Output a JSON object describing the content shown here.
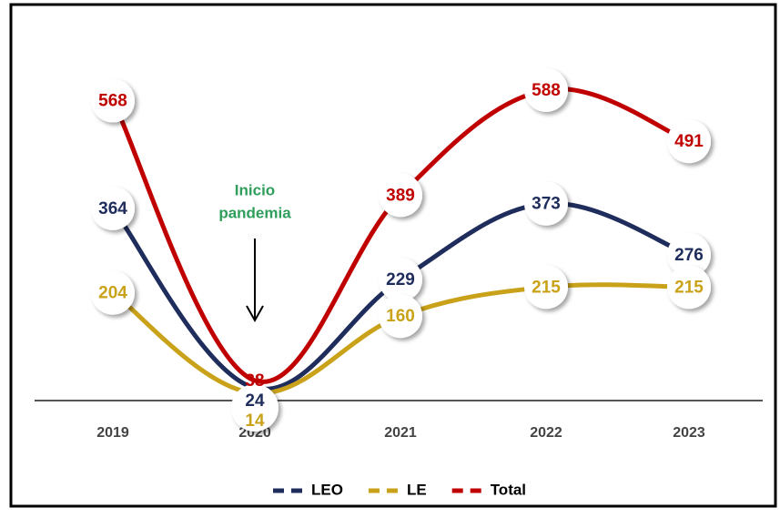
{
  "chart_data": {
    "type": "line",
    "categories": [
      "2019",
      "2020",
      "2021",
      "2022",
      "2023"
    ],
    "series": [
      {
        "name": "LEO",
        "color": "#1f2d5c",
        "values": [
          364,
          24,
          229,
          373,
          276
        ]
      },
      {
        "name": "LE",
        "color": "#c9a21a",
        "values": [
          204,
          14,
          160,
          215,
          215
        ]
      },
      {
        "name": "Total",
        "color": "#c00000",
        "values": [
          568,
          38,
          389,
          588,
          491
        ]
      }
    ],
    "ylim": [
      0,
      650
    ],
    "annotation": {
      "lines": [
        "Inicio",
        "pandemia"
      ],
      "category": 1,
      "color": "#2e9e5a"
    },
    "legend": "bottom"
  }
}
